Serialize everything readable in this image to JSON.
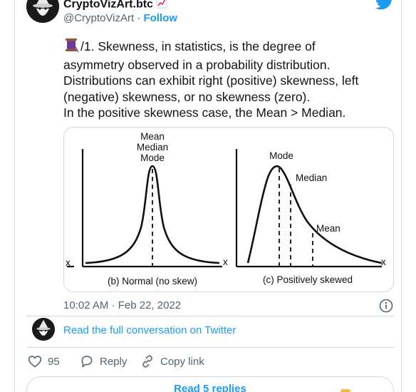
{
  "tweet": {
    "author_name": "CryptoVizArt.btc",
    "author_handle": "@CryptoVizArt",
    "separator": " · ",
    "follow_label": "Follow",
    "text_lines": [
      "/1. Skewness, in statistics, is the degree of",
      "asymmetry observed in a probability distribution.",
      "Distributions can exhibit right (positive) skewness, left",
      "(negative) skewness, or no skewness (zero).",
      "In the positive skewness case, the Mean > Median."
    ],
    "timestamp": "10:02 AM · Feb 22, 2022"
  },
  "figure": {
    "normal_panel": {
      "peak_labels": [
        "Mean",
        "Median",
        "Mode"
      ],
      "x_axis_label": "x",
      "caption": "(b) Normal (no skew)"
    },
    "skewed_panel": {
      "mode_label": "Mode",
      "median_label": "Median",
      "mean_label": "Mean",
      "x_axis_label": "x",
      "caption": "(c) Positively skewed"
    },
    "cut_left_label": "x"
  },
  "conversation": {
    "read_full_label": "Read the full conversation on Twitter"
  },
  "actions": {
    "like_count": "95",
    "reply_label": "Reply",
    "copy_link_label": "Copy link"
  },
  "replies": {
    "read_replies_label": "Read 5 replies"
  },
  "colors": {
    "link": "#1d9bf0",
    "secondary_text": "#536471",
    "border": "#cfd9de"
  },
  "icons": [
    "twitter-bird-icon",
    "chart-increasing-icon",
    "thread-emoji-icon",
    "info-icon",
    "heart-icon",
    "reply-bubble-icon",
    "link-icon",
    "wizard-avatar"
  ]
}
